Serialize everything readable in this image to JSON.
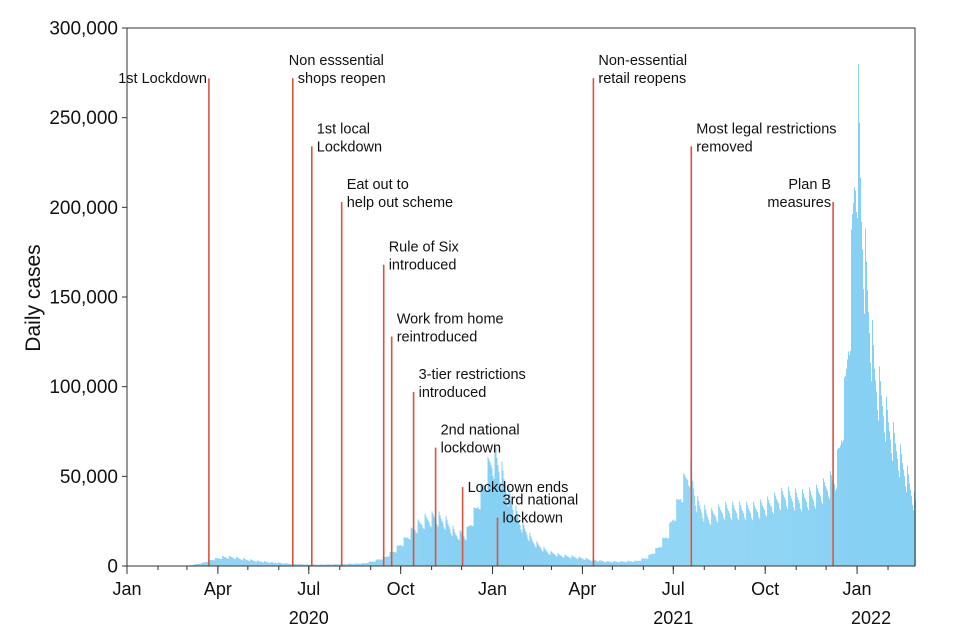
{
  "chart_data": {
    "type": "bar",
    "title": "",
    "ylabel": "Daily cases",
    "xlabel": "",
    "ylim": [
      0,
      300000
    ],
    "y_ticks": [
      0,
      50000,
      100000,
      150000,
      200000,
      250000,
      300000
    ],
    "y_tick_labels": [
      "0",
      "50,000",
      "100,000",
      "150,000",
      "200,000",
      "250,000",
      "300,000"
    ],
    "x_range": [
      "2020-01-01",
      "2022-02-28"
    ],
    "x_ticks": [
      {
        "date": "2020-01-01",
        "label": "Jan"
      },
      {
        "date": "2020-04-01",
        "label": "Apr"
      },
      {
        "date": "2020-07-01",
        "label": "Jul"
      },
      {
        "date": "2020-10-01",
        "label": "Oct"
      },
      {
        "date": "2021-01-01",
        "label": "Jan"
      },
      {
        "date": "2021-04-01",
        "label": "Apr"
      },
      {
        "date": "2021-07-01",
        "label": "Jul"
      },
      {
        "date": "2021-10-01",
        "label": "Oct"
      },
      {
        "date": "2022-01-01",
        "label": "Jan"
      }
    ],
    "year_labels": [
      {
        "date": "2020-07-01",
        "label": "2020"
      },
      {
        "date": "2021-07-01",
        "label": "2021"
      },
      {
        "date": "2022-01-15",
        "label": "2022"
      }
    ],
    "series_color": "#7dcdf3",
    "event_color": "#d9543f",
    "grid": false,
    "legend": "none",
    "series": [
      {
        "name": "",
        "x": [
          "2020-03-01",
          "2020-03-15",
          "2020-03-25",
          "2020-04-05",
          "2020-04-15",
          "2020-04-25",
          "2020-05-10",
          "2020-05-25",
          "2020-06-10",
          "2020-06-25",
          "2020-07-10",
          "2020-07-25",
          "2020-08-10",
          "2020-08-25",
          "2020-09-05",
          "2020-09-15",
          "2020-09-25",
          "2020-10-05",
          "2020-10-15",
          "2020-10-25",
          "2020-11-05",
          "2020-11-15",
          "2020-11-25",
          "2020-12-05",
          "2020-12-15",
          "2020-12-22",
          "2020-12-29",
          "2021-01-04",
          "2021-01-10",
          "2021-01-18",
          "2021-01-28",
          "2021-02-10",
          "2021-02-25",
          "2021-03-10",
          "2021-03-25",
          "2021-04-10",
          "2021-04-25",
          "2021-05-10",
          "2021-05-25",
          "2021-06-05",
          "2021-06-15",
          "2021-06-25",
          "2021-07-05",
          "2021-07-12",
          "2021-07-17",
          "2021-07-25",
          "2021-08-05",
          "2021-08-20",
          "2021-09-05",
          "2021-09-20",
          "2021-10-05",
          "2021-10-20",
          "2021-11-05",
          "2021-11-20",
          "2021-12-01",
          "2021-12-10",
          "2021-12-15",
          "2021-12-20",
          "2021-12-25",
          "2021-12-29",
          "2022-01-02",
          "2022-01-05",
          "2022-01-10",
          "2022-01-18",
          "2022-01-25",
          "2022-02-01",
          "2022-02-10",
          "2022-02-20",
          "2022-02-28"
        ],
        "values": [
          200,
          1500,
          3500,
          5000,
          5000,
          4000,
          2800,
          2000,
          1400,
          900,
          800,
          900,
          1200,
          1500,
          3000,
          5000,
          9000,
          15000,
          22000,
          26000,
          28000,
          25000,
          18000,
          18000,
          32000,
          45000,
          58000,
          62000,
          52000,
          38000,
          25000,
          14000,
          8000,
          6000,
          5000,
          3500,
          2500,
          2500,
          2800,
          5000,
          10000,
          18000,
          35000,
          48000,
          55000,
          35000,
          28000,
          32000,
          32000,
          32000,
          35000,
          40000,
          38000,
          40000,
          45000,
          50000,
          70000,
          100000,
          150000,
          220000,
          250000,
          200000,
          160000,
          110000,
          95000,
          80000,
          65000,
          50000,
          35000
        ]
      }
    ],
    "annotations": [
      {
        "date": "2020-03-23",
        "y_top": 272000,
        "lines": [
          "1st Lockdown"
        ],
        "align": "end"
      },
      {
        "date": "2020-06-15",
        "y_top": 272000,
        "lines": [
          "Non esssential",
          "shops reopen"
        ],
        "align": "mixed"
      },
      {
        "date": "2020-07-04",
        "y_top": 234000,
        "lines": [
          "1st local",
          "Lockdown"
        ],
        "align": "start"
      },
      {
        "date": "2020-08-03",
        "y_top": 203000,
        "lines": [
          "Eat out to",
          "help out scheme"
        ],
        "align": "start"
      },
      {
        "date": "2020-09-14",
        "y_top": 168000,
        "lines": [
          "Rule of Six",
          "introduced"
        ],
        "align": "start"
      },
      {
        "date": "2020-09-22",
        "y_top": 128000,
        "lines": [
          "Work from home",
          "reintroduced"
        ],
        "align": "start"
      },
      {
        "date": "2020-10-14",
        "y_top": 97000,
        "lines": [
          "3-tier restrictions",
          "introduced"
        ],
        "align": "start"
      },
      {
        "date": "2020-11-05",
        "y_top": 66000,
        "lines": [
          "2nd national",
          "lockdown"
        ],
        "align": "start"
      },
      {
        "date": "2020-12-02",
        "y_top": 44000,
        "lines": [
          "Lockdown ends"
        ],
        "align": "start"
      },
      {
        "date": "2021-01-06",
        "y_top": 27000,
        "lines": [
          "3rd national",
          "lockdown"
        ],
        "align": "start"
      },
      {
        "date": "2021-04-12",
        "y_top": 272000,
        "lines": [
          "Non-essential",
          "retail reopens"
        ],
        "align": "start"
      },
      {
        "date": "2021-07-19",
        "y_top": 234000,
        "lines": [
          "Most legal restrictions",
          "removed"
        ],
        "align": "start"
      },
      {
        "date": "2021-12-08",
        "y_top": 203000,
        "lines": [
          "Plan B",
          "measures"
        ],
        "align": "end"
      }
    ]
  }
}
